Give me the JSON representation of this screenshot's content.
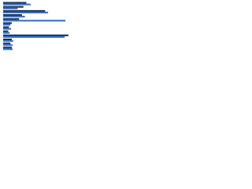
{
  "chart_data": {
    "type": "hbar",
    "categories": [
      null,
      null,
      null,
      null,
      null,
      null,
      null,
      null,
      null,
      null,
      null,
      null
    ],
    "series": [
      {
        "color": "#1b2f4d",
        "values": [
          32,
          28,
          58,
          26,
          22,
          12,
          8,
          7,
          90,
          12,
          10,
          12
        ]
      },
      {
        "color": "#2f6fd6",
        "values": [
          38,
          20,
          62,
          30,
          86,
          10,
          11,
          9,
          85,
          14,
          13,
          13
        ]
      }
    ],
    "xlim": [
      0,
      100
    ]
  }
}
